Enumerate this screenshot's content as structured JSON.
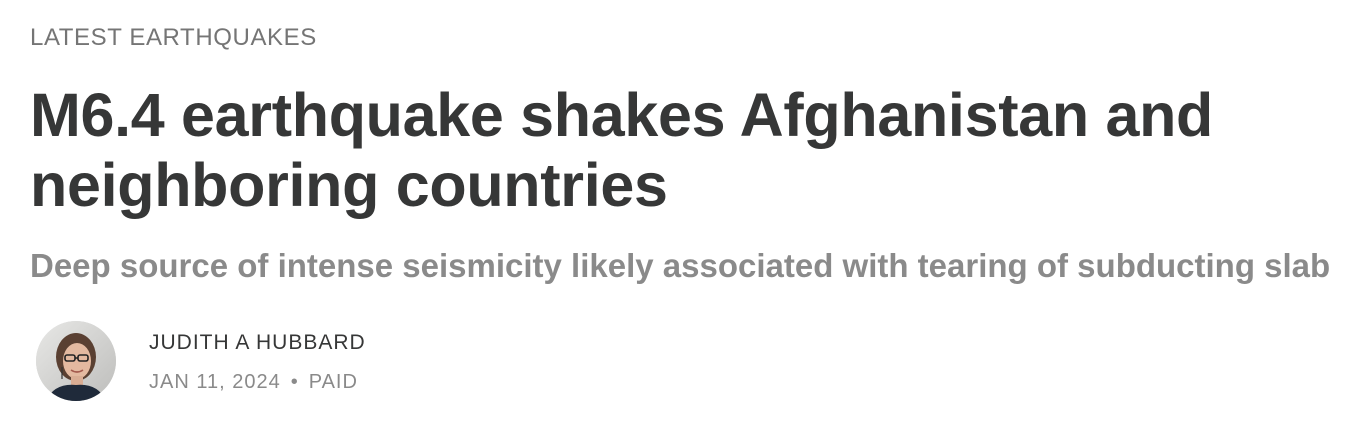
{
  "post": {
    "section_label": "LATEST EARTHQUAKES",
    "title": "M6.4 earthquake shakes Afghanistan and neighboring countries",
    "subtitle": "Deep source of intense seismicity likely associated with tearing of subducting slab",
    "author": {
      "name": "JUDITH A HUBBARD",
      "avatar_icon": "author-photo"
    },
    "date": "JAN 11, 2024",
    "separator": "•",
    "access": "PAID"
  }
}
